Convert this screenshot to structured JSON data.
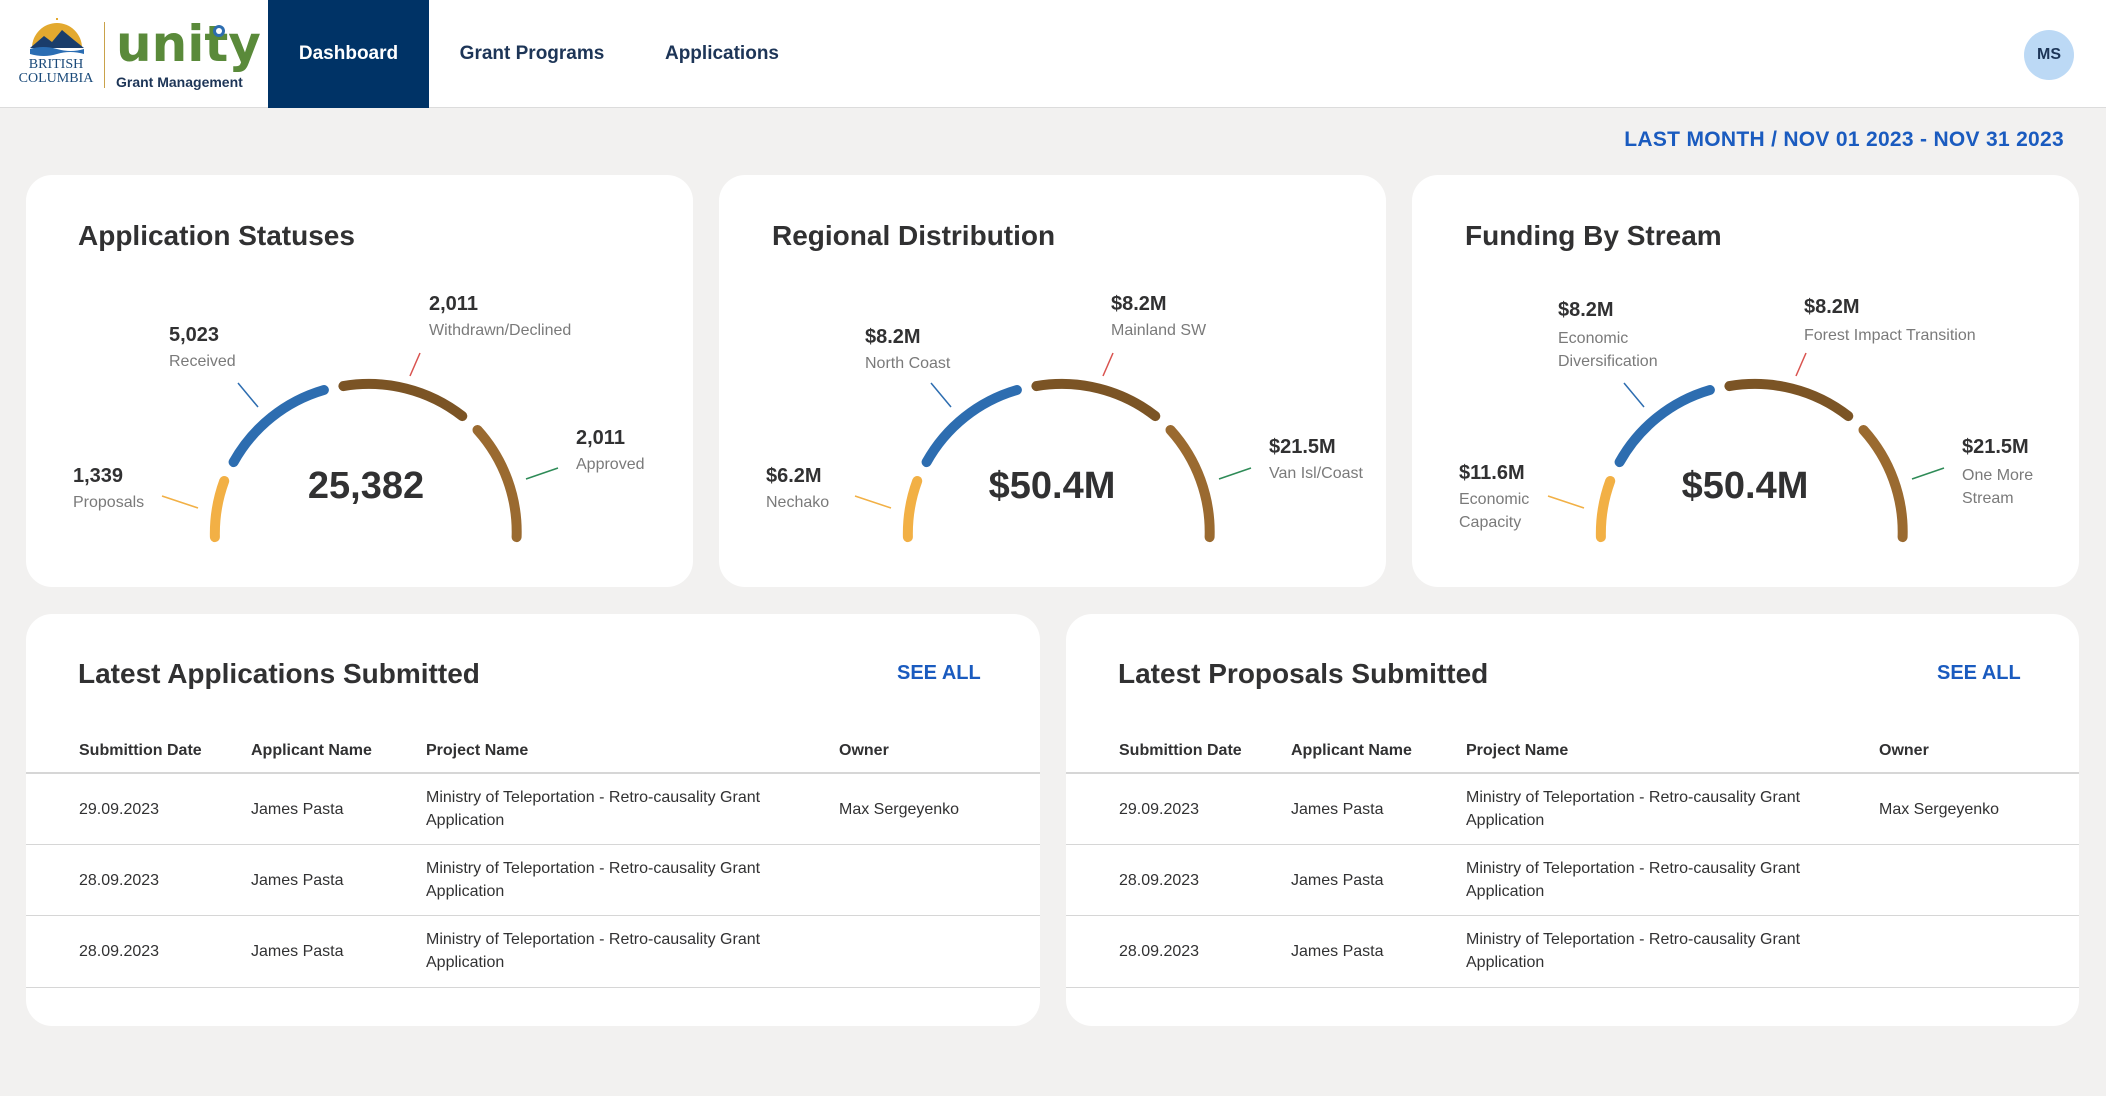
{
  "header": {
    "logo_bc_line1": "BRITISH",
    "logo_bc_line2": "COLUMBIA",
    "logo_word": "unity",
    "logo_sub": "Grant Management",
    "nav": [
      {
        "label": "Dashboard",
        "active": true
      },
      {
        "label": "Grant Programs",
        "active": false
      },
      {
        "label": "Applications",
        "active": false
      }
    ],
    "avatar_initials": "MS"
  },
  "date_range": "LAST MONTH / NOV 01 2023 - NOV 31 2023",
  "colors": {
    "navy": "#003366",
    "accent_blue": "#1a5bbf",
    "seg_orange": "#f2b045",
    "seg_blue": "#2d6db0",
    "seg_brown_dark": "#7b5425",
    "seg_brown": "#9a6a30"
  },
  "gauges": [
    {
      "title": "Application Statuses",
      "center": "25,382",
      "segments": [
        {
          "value": "1,339",
          "name": "Proposals"
        },
        {
          "value": "5,023",
          "name": "Received"
        },
        {
          "value": "2,011",
          "name": "Withdrawn/Declined"
        },
        {
          "value": "2,011",
          "name": "Approved"
        }
      ]
    },
    {
      "title": "Regional Distribution",
      "center": "$50.4M",
      "segments": [
        {
          "value": "$6.2M",
          "name": "Nechako"
        },
        {
          "value": "$8.2M",
          "name": "North Coast"
        },
        {
          "value": "$8.2M",
          "name": "Mainland SW"
        },
        {
          "value": "$21.5M",
          "name": "Van Isl/Coast"
        }
      ]
    },
    {
      "title": "Funding By Stream",
      "center": "$50.4M",
      "segments": [
        {
          "value": "$11.6M",
          "name": "Economic Capacity",
          "name_lines": [
            "Economic",
            "Capacity"
          ]
        },
        {
          "value": "$8.2M",
          "name": "Economic Diversification",
          "name_lines": [
            "Economic",
            "Diversification"
          ]
        },
        {
          "value": "$8.2M",
          "name": "Forest Impact Transition"
        },
        {
          "value": "$21.5M",
          "name": "One More Stream",
          "name_lines": [
            "One More",
            "Stream"
          ]
        }
      ]
    }
  ],
  "tables": [
    {
      "title": "Latest Applications Submitted",
      "see_all": "SEE ALL",
      "columns": [
        "Submittion Date",
        "Applicant Name",
        "Project Name",
        "Owner"
      ],
      "rows": [
        {
          "date": "29.09.2023",
          "applicant": "James Pasta",
          "project_line1": "Ministry of Teleportation - Retro-causality Grant",
          "project_line2": "Application",
          "owner": "Max Sergeyenko"
        },
        {
          "date": "28.09.2023",
          "applicant": "James Pasta",
          "project_line1": "Ministry of Teleportation - Retro-causality Grant",
          "project_line2": "Application",
          "owner": ""
        },
        {
          "date": "28.09.2023",
          "applicant": "James Pasta",
          "project_line1": "Ministry of Teleportation - Retro-causality Grant",
          "project_line2": "Application",
          "owner": ""
        }
      ]
    },
    {
      "title": "Latest Proposals Submitted",
      "see_all": "SEE ALL",
      "columns": [
        "Submittion Date",
        "Applicant Name",
        "Project Name",
        "Owner"
      ],
      "rows": [
        {
          "date": "29.09.2023",
          "applicant": "James Pasta",
          "project_line1": "Ministry of Teleportation - Retro-causality Grant",
          "project_line2": "Application",
          "owner": "Max Sergeyenko"
        },
        {
          "date": "28.09.2023",
          "applicant": "James Pasta",
          "project_line1": "Ministry of Teleportation - Retro-causality Grant",
          "project_line2": "Application",
          "owner": ""
        },
        {
          "date": "28.09.2023",
          "applicant": "James Pasta",
          "project_line1": "Ministry of Teleportation - Retro-causality Grant",
          "project_line2": "Application",
          "owner": ""
        }
      ]
    }
  ]
}
